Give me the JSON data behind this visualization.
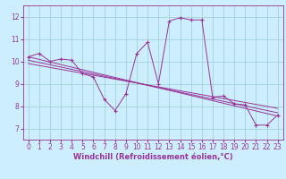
{
  "xlabel": "Windchill (Refroidissement éolien,°C)",
  "bg_color": "#cceeff",
  "line_color": "#993399",
  "grid_color": "#99cccc",
  "xlim": [
    -0.5,
    23.5
  ],
  "ylim": [
    6.5,
    12.5
  ],
  "xticks": [
    0,
    1,
    2,
    3,
    4,
    5,
    6,
    7,
    8,
    9,
    10,
    11,
    12,
    13,
    14,
    15,
    16,
    17,
    18,
    19,
    20,
    21,
    22,
    23
  ],
  "yticks": [
    7,
    8,
    9,
    10,
    11,
    12
  ],
  "main_x": [
    0,
    1,
    2,
    3,
    4,
    5,
    6,
    7,
    8,
    9,
    10,
    11,
    12,
    13,
    14,
    15,
    16,
    17,
    18,
    19,
    20,
    21,
    22,
    23
  ],
  "main_y": [
    10.2,
    10.35,
    10.0,
    10.1,
    10.05,
    9.45,
    9.3,
    8.3,
    7.8,
    8.55,
    10.35,
    10.85,
    9.0,
    11.8,
    11.95,
    11.85,
    11.85,
    8.4,
    8.45,
    8.1,
    8.05,
    7.15,
    7.15,
    7.6
  ],
  "trend1_x": [
    0,
    23
  ],
  "trend1_y": [
    10.2,
    7.55
  ],
  "trend2_x": [
    0,
    23
  ],
  "trend2_y": [
    10.05,
    7.7
  ],
  "trend3_x": [
    0,
    23
  ],
  "trend3_y": [
    9.9,
    7.9
  ],
  "tick_fontsize": 5.5,
  "xlabel_fontsize": 6.0
}
